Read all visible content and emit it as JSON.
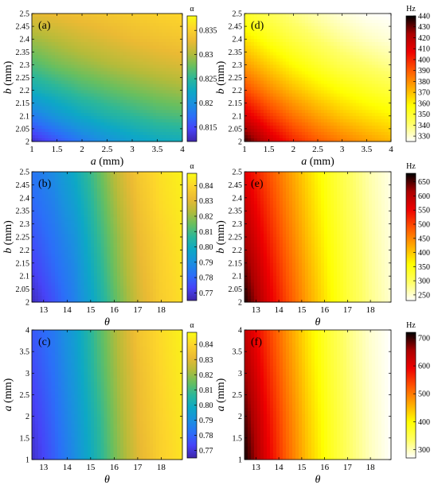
{
  "colormaps": {
    "parula": [
      "#3e26a8",
      "#4743f8",
      "#2b6ff8",
      "#1a90df",
      "#0da8c5",
      "#2bb79a",
      "#69bf5e",
      "#b4bb3a",
      "#ebba33",
      "#fdd52b",
      "#f9fb14"
    ],
    "hot": [
      "#ffffff",
      "#ffff66",
      "#ffff00",
      "#ffaa00",
      "#ff5500",
      "#ee0000",
      "#aa0000",
      "#000000"
    ]
  },
  "chart_data": [
    {
      "type": "heatmap",
      "panel_label": "(a)",
      "xlabel": "a (mm)",
      "ylabel": "b (mm)",
      "x_ticks": [
        "1",
        "1.5",
        "2",
        "2.5",
        "3",
        "3.5",
        "4"
      ],
      "y_ticks": [
        "2",
        "2.05",
        "2.1",
        "2.15",
        "2.2",
        "2.25",
        "2.3",
        "2.35",
        "2.4",
        "2.45",
        "2.5"
      ],
      "xlim": [
        1,
        4
      ],
      "ylim": [
        2,
        2.5
      ],
      "colorbar": {
        "title": "α",
        "colormap": "parula",
        "ticks": [
          "0.815",
          "0.82",
          "0.825",
          "0.83",
          "0.835"
        ],
        "range": [
          0.812,
          0.838
        ]
      },
      "z_grid": [
        [
          0.813,
          0.8155,
          0.818,
          0.82,
          0.8215,
          0.8225,
          0.823
        ],
        [
          0.818,
          0.8205,
          0.8225,
          0.824,
          0.825,
          0.826,
          0.8265
        ],
        [
          0.823,
          0.8245,
          0.826,
          0.827,
          0.828,
          0.8288,
          0.8295
        ],
        [
          0.8265,
          0.828,
          0.829,
          0.83,
          0.8308,
          0.8315,
          0.832
        ],
        [
          0.8295,
          0.8305,
          0.8315,
          0.8322,
          0.833,
          0.8335,
          0.834
        ],
        [
          0.8325,
          0.833,
          0.8335,
          0.834,
          0.8345,
          0.835,
          0.8355
        ]
      ]
    },
    {
      "type": "heatmap",
      "panel_label": "(d)",
      "xlabel": "a (mm)",
      "ylabel": "b (mm)",
      "x_ticks": [
        "1",
        "1.5",
        "2",
        "2.5",
        "3",
        "3.5",
        "4"
      ],
      "y_ticks": [
        "2",
        "2.05",
        "2.1",
        "2.15",
        "2.2",
        "2.25",
        "2.3",
        "2.35",
        "2.4",
        "2.45",
        "2.5"
      ],
      "xlim": [
        1,
        4
      ],
      "ylim": [
        2,
        2.5
      ],
      "colorbar": {
        "title": "Hz",
        "colormap": "hot",
        "ticks": [
          "330",
          "340",
          "350",
          "360",
          "370",
          "380",
          "390",
          "400",
          "410",
          "420",
          "430",
          "440"
        ],
        "range": [
          325,
          440
        ]
      },
      "z_grid": [
        [
          435,
          415,
          400,
          390,
          383,
          377,
          372
        ],
        [
          412,
          397,
          385,
          376,
          369,
          364,
          360
        ],
        [
          393,
          381,
          371,
          363,
          357,
          352,
          348
        ],
        [
          377,
          367,
          358,
          351,
          345,
          341,
          337
        ],
        [
          363,
          354,
          347,
          341,
          336,
          332,
          329
        ],
        [
          351,
          344,
          338,
          333,
          329,
          326,
          325
        ]
      ]
    },
    {
      "type": "heatmap",
      "panel_label": "(b)",
      "xlabel": "θ",
      "ylabel": "b (mm)",
      "x_ticks": [
        "13",
        "14",
        "15",
        "16",
        "17",
        "18"
      ],
      "y_ticks": [
        "2",
        "2.05",
        "2.1",
        "2.15",
        "2.2",
        "2.25",
        "2.3",
        "2.35",
        "2.4",
        "2.45",
        "2.5"
      ],
      "xlim": [
        12.5,
        18.9
      ],
      "ylim": [
        2,
        2.5
      ],
      "colorbar": {
        "title": "α",
        "colormap": "parula",
        "ticks": [
          "0.77",
          "0.78",
          "0.79",
          "0.80",
          "0.81",
          "0.82",
          "0.83",
          "0.84"
        ],
        "range": [
          0.765,
          0.848
        ]
      },
      "z_grid": [
        [
          0.767,
          0.776,
          0.786,
          0.8,
          0.815,
          0.828,
          0.837,
          0.842
        ],
        [
          0.772,
          0.78,
          0.788,
          0.803,
          0.818,
          0.83,
          0.838,
          0.843
        ],
        [
          0.776,
          0.783,
          0.791,
          0.806,
          0.82,
          0.832,
          0.839,
          0.844
        ],
        [
          0.78,
          0.786,
          0.795,
          0.809,
          0.823,
          0.834,
          0.841,
          0.845
        ],
        [
          0.783,
          0.789,
          0.799,
          0.812,
          0.826,
          0.836,
          0.842,
          0.846
        ]
      ]
    },
    {
      "type": "heatmap",
      "panel_label": "(e)",
      "xlabel": "θ",
      "ylabel": "b (mm)",
      "x_ticks": [
        "13",
        "14",
        "15",
        "16",
        "17",
        "18"
      ],
      "y_ticks": [
        "2",
        "2.05",
        "2.1",
        "2.15",
        "2.2",
        "2.25",
        "2.3",
        "2.35",
        "2.4",
        "2.45",
        "2.5"
      ],
      "xlim": [
        12.5,
        18.9
      ],
      "ylim": [
        2,
        2.5
      ],
      "colorbar": {
        "title": "Hz",
        "colormap": "hot",
        "ticks": [
          "250",
          "300",
          "350",
          "400",
          "450",
          "500",
          "550",
          "600",
          "650"
        ],
        "range": [
          230,
          680
        ]
      },
      "z_grid": [
        [
          670,
          580,
          500,
          430,
          370,
          320,
          280,
          250
        ],
        [
          640,
          560,
          485,
          420,
          362,
          315,
          276,
          247
        ],
        [
          610,
          540,
          470,
          408,
          354,
          309,
          272,
          244
        ],
        [
          585,
          520,
          455,
          398,
          346,
          303,
          268,
          242
        ],
        [
          560,
          500,
          442,
          388,
          339,
          298,
          264,
          240
        ]
      ]
    },
    {
      "type": "heatmap",
      "panel_label": "(c)",
      "xlabel": "θ",
      "ylabel": "a (mm)",
      "x_ticks": [
        "13",
        "14",
        "15",
        "16",
        "17",
        "18"
      ],
      "y_ticks": [
        "1",
        "1.5",
        "2",
        "2.5",
        "3",
        "3.5",
        "4"
      ],
      "xlim": [
        12.5,
        18.9
      ],
      "ylim": [
        1,
        4
      ],
      "colorbar": {
        "title": "α",
        "colormap": "parula",
        "ticks": [
          "0.77",
          "0.78",
          "0.79",
          "0.80",
          "0.81",
          "0.82",
          "0.83",
          "0.84"
        ],
        "range": [
          0.765,
          0.848
        ]
      },
      "z_grid": [
        [
          0.768,
          0.778,
          0.789,
          0.803,
          0.818,
          0.83,
          0.838,
          0.843
        ],
        [
          0.771,
          0.78,
          0.791,
          0.805,
          0.82,
          0.832,
          0.839,
          0.844
        ],
        [
          0.774,
          0.782,
          0.793,
          0.808,
          0.822,
          0.833,
          0.84,
          0.845
        ],
        [
          0.777,
          0.784,
          0.795,
          0.81,
          0.824,
          0.835,
          0.841,
          0.846
        ]
      ]
    },
    {
      "type": "heatmap",
      "panel_label": "(f)",
      "xlabel": "θ",
      "ylabel": "a (mm)",
      "x_ticks": [
        "13",
        "14",
        "15",
        "16",
        "17",
        "18"
      ],
      "y_ticks": [
        "1",
        "1.5",
        "2",
        "2.5",
        "3",
        "3.5",
        "4"
      ],
      "xlim": [
        12.5,
        18.9
      ],
      "ylim": [
        1,
        4
      ],
      "colorbar": {
        "title": "Hz",
        "colormap": "hot",
        "ticks": [
          "300",
          "400",
          "500",
          "600",
          "700"
        ],
        "range": [
          270,
          720
        ]
      },
      "z_grid": [
        [
          715,
          610,
          520,
          445,
          385,
          335,
          298,
          272
        ],
        [
          690,
          595,
          510,
          438,
          380,
          332,
          296,
          271
        ],
        [
          660,
          575,
          496,
          428,
          372,
          327,
          293,
          270
        ],
        [
          630,
          555,
          482,
          418,
          365,
          322,
          290,
          270
        ]
      ]
    }
  ]
}
